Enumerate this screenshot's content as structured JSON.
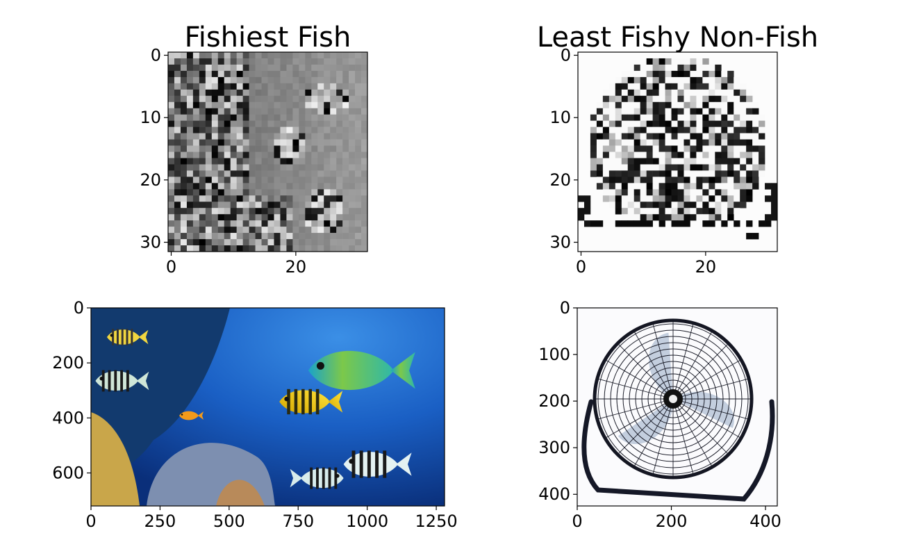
{
  "chart_data": [
    {
      "type": "heatmap",
      "title": "Fishiest Fish",
      "colormap": "gray",
      "grid_size": [
        32,
        32
      ],
      "xlim": [
        -0.5,
        31.5
      ],
      "ylim": [
        31.5,
        -0.5
      ],
      "x_ticks": [
        0,
        20
      ],
      "y_ticks": [
        0,
        10,
        20,
        30
      ]
    },
    {
      "type": "heatmap",
      "title": "Least Fishy Non-Fish",
      "colormap": "gray",
      "grid_size": [
        32,
        32
      ],
      "xlim": [
        -0.5,
        31.5
      ],
      "ylim": [
        31.5,
        -0.5
      ],
      "x_ticks": [
        0,
        20
      ],
      "y_ticks": [
        0,
        10,
        20,
        30
      ]
    },
    {
      "type": "image",
      "title": "",
      "content": "underwater coral reef with tropical fish",
      "image_size": [
        1280,
        720
      ],
      "xlim": [
        0,
        1280
      ],
      "ylim": [
        720,
        0
      ],
      "x_ticks": [
        0,
        250,
        500,
        750,
        1000,
        1250
      ],
      "y_ticks": [
        0,
        200,
        400,
        600
      ]
    },
    {
      "type": "image",
      "title": "",
      "content": "floor fan",
      "image_size": [
        425,
        425
      ],
      "xlim": [
        0,
        425
      ],
      "ylim": [
        425,
        0
      ],
      "x_ticks": [
        0,
        200,
        400
      ],
      "y_ticks": [
        0,
        100,
        200,
        300,
        400
      ]
    }
  ]
}
